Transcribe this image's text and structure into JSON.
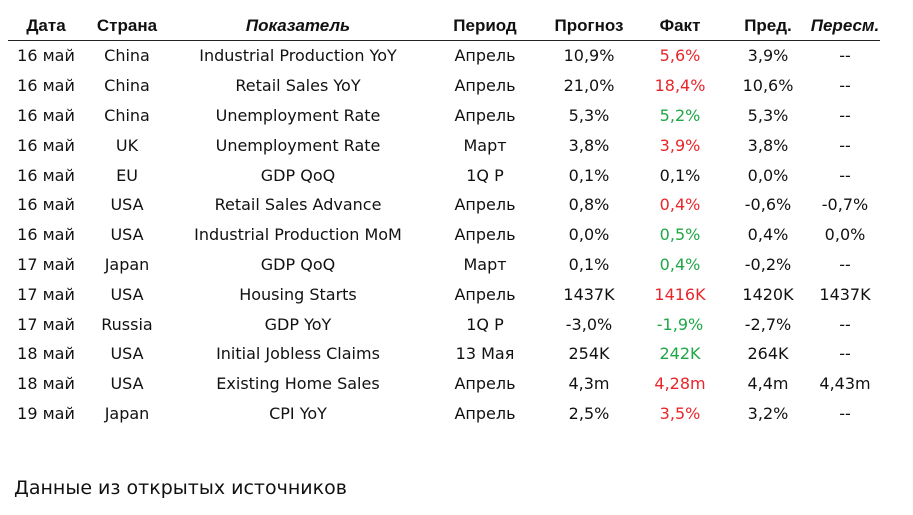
{
  "headers": {
    "date": "Дата",
    "country": "Страна",
    "indicator": "Показатель",
    "period": "Период",
    "forecast": "Прогноз",
    "actual": "Факт",
    "previous": "Пред.",
    "revised": "Пересм."
  },
  "rows": [
    {
      "date": "16 май",
      "country": "China",
      "indicator": "Industrial Production YoY",
      "period": "Апрель",
      "forecast": "10,9%",
      "actual": "5,6%",
      "actual_color": "red",
      "previous": "3,9%",
      "revised": "--"
    },
    {
      "date": "16 май",
      "country": "China",
      "indicator": "Retail Sales YoY",
      "period": "Апрель",
      "forecast": "21,0%",
      "actual": "18,4%",
      "actual_color": "red",
      "previous": "10,6%",
      "revised": "--"
    },
    {
      "date": "16 май",
      "country": "China",
      "indicator": "Unemployment Rate",
      "period": "Апрель",
      "forecast": "5,3%",
      "actual": "5,2%",
      "actual_color": "green",
      "previous": "5,3%",
      "revised": "--"
    },
    {
      "date": "16 май",
      "country": "UK",
      "indicator": "Unemployment Rate",
      "period": "Март",
      "forecast": "3,8%",
      "actual": "3,9%",
      "actual_color": "red",
      "previous": "3,8%",
      "revised": "--"
    },
    {
      "date": "16 май",
      "country": "EU",
      "indicator": "GDP QoQ",
      "period": "1Q P",
      "forecast": "0,1%",
      "actual": "0,1%",
      "actual_color": "black",
      "previous": "0,0%",
      "revised": "--"
    },
    {
      "date": "16 май",
      "country": "USA",
      "indicator": "Retail Sales Advance",
      "period": "Апрель",
      "forecast": "0,8%",
      "actual": "0,4%",
      "actual_color": "red",
      "previous": "-0,6%",
      "revised": "-0,7%"
    },
    {
      "date": "16 май",
      "country": "USA",
      "indicator": "Industrial Production MoM",
      "period": "Апрель",
      "forecast": "0,0%",
      "actual": "0,5%",
      "actual_color": "green",
      "previous": "0,4%",
      "revised": "0,0%"
    },
    {
      "date": "17 май",
      "country": "Japan",
      "indicator": "GDP QoQ",
      "period": "Март",
      "forecast": "0,1%",
      "actual": "0,4%",
      "actual_color": "green",
      "previous": "-0,2%",
      "revised": "--"
    },
    {
      "date": "17 май",
      "country": "USA",
      "indicator": "Housing Starts",
      "period": "Апрель",
      "forecast": "1437K",
      "actual": "1416K",
      "actual_color": "red",
      "previous": "1420K",
      "revised": "1437K"
    },
    {
      "date": "17 май",
      "country": "Russia",
      "indicator": "GDP YoY",
      "period": "1Q P",
      "forecast": "-3,0%",
      "actual": "-1,9%",
      "actual_color": "green",
      "previous": "-2,7%",
      "revised": "--"
    },
    {
      "date": "18 май",
      "country": "USA",
      "indicator": "Initial Jobless Claims",
      "period": "13 Мая",
      "forecast": "254K",
      "actual": "242K",
      "actual_color": "green",
      "previous": "264K",
      "revised": "--"
    },
    {
      "date": "18 май",
      "country": "USA",
      "indicator": "Existing Home Sales",
      "period": "Апрель",
      "forecast": "4,3m",
      "actual": "4,28m",
      "actual_color": "red",
      "previous": "4,4m",
      "revised": "4,43m"
    },
    {
      "date": "19 май",
      "country": "Japan",
      "indicator": "CPI YoY",
      "period": "Апрель",
      "forecast": "2,5%",
      "actual": "3,5%",
      "actual_color": "red",
      "previous": "3,2%",
      "revised": "--"
    }
  ],
  "footer": "Данные из открытых источников"
}
